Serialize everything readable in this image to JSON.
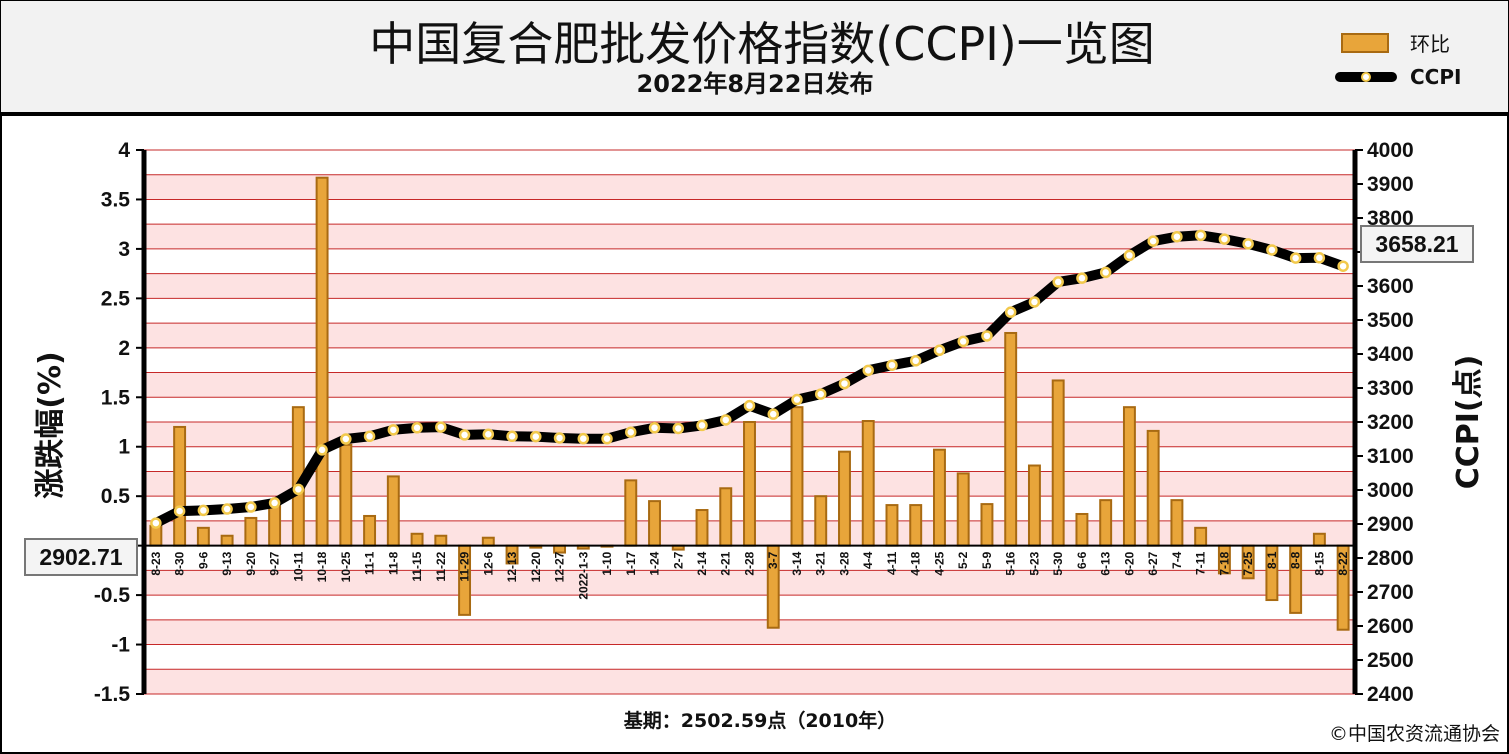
{
  "title": "中国复合肥批发价格指数(CCPI)一览图",
  "subtitle": "2022年8月22日发布",
  "legend": {
    "bar_label": "环比",
    "line_label": "CCPI"
  },
  "footer": {
    "base": "基期：2502.59点（2010年）",
    "copyright": "©中国农资流通协会"
  },
  "callouts": {
    "start": "2902.71",
    "end": "3658.21"
  },
  "colors": {
    "band": "#fde2e2",
    "gridline": "#c62828",
    "bar_fill": "#e8a53a",
    "bar_edge": "#a86a12",
    "line": "#000000",
    "marker": "#f2c94c"
  },
  "chart_data": {
    "type": "bar",
    "title": "中国复合肥批发价格指数(CCPI)一览图",
    "xlabel": "",
    "ylabel": "涨跌幅(%)",
    "y2label": "CCPI(点)",
    "ylim": [
      -1.5,
      4
    ],
    "y2lim": [
      2400,
      4000
    ],
    "yticks": [
      "4",
      "3.5",
      "3",
      "2.5",
      "2",
      "1.5",
      "1",
      "0.5",
      "",
      "-0.5",
      "-1",
      "-1.5"
    ],
    "y2ticks": [
      "4000",
      "3900",
      "3800",
      "3700",
      "3600",
      "3500",
      "3400",
      "3300",
      "3200",
      "3100",
      "3000",
      "2900",
      "2800",
      "2700",
      "2600",
      "2500",
      "2400"
    ],
    "grid": true,
    "legend_position": "top-right",
    "categories": [
      "8-23",
      "8-30",
      "9-6",
      "9-13",
      "9-20",
      "9-27",
      "10-11",
      "10-18",
      "10-25",
      "11-1",
      "11-8",
      "11-15",
      "11-22",
      "11-29",
      "12-6",
      "12-13",
      "12-20",
      "12-27",
      "2022-1-3",
      "1-10",
      "1-17",
      "1-24",
      "2-7",
      "2-14",
      "2-21",
      "2-28",
      "3-7",
      "3-14",
      "3-21",
      "3-28",
      "4-4",
      "4-11",
      "4-18",
      "4-25",
      "5-2",
      "5-9",
      "5-16",
      "5-23",
      "5-30",
      "6-6",
      "6-13",
      "6-20",
      "6-27",
      "7-4",
      "7-11",
      "7-18",
      "7-25",
      "8-1",
      "8-8",
      "8-15",
      "8-22"
    ],
    "series": [
      {
        "name": "环比",
        "type": "bar",
        "values": [
          0.2,
          1.2,
          0.18,
          0.1,
          0.28,
          0.4,
          1.4,
          3.72,
          1.02,
          0.3,
          0.7,
          0.12,
          0.1,
          -0.7,
          0.08,
          -0.18,
          -0.02,
          -0.07,
          -0.03,
          0.0,
          0.66,
          0.45,
          -0.04,
          0.36,
          0.58,
          1.25,
          -0.83,
          1.4,
          0.5,
          0.95,
          1.26,
          0.41,
          0.41,
          0.97,
          0.73,
          0.42,
          2.15,
          0.81,
          1.67,
          0.32,
          0.46,
          1.4,
          1.16,
          0.46,
          0.18,
          -0.28,
          -0.33,
          -0.55,
          -0.68,
          0.12,
          -0.85
        ]
      },
      {
        "name": "CCPI",
        "type": "line",
        "axis": "right",
        "values": [
          2902.71,
          2938,
          2940,
          2944,
          2950,
          2962,
          3002,
          3118,
          3150,
          3158,
          3177,
          3183,
          3185,
          3162,
          3164,
          3158,
          3157,
          3153,
          3151,
          3151,
          3170,
          3183,
          3181,
          3190,
          3206,
          3248,
          3223,
          3266,
          3282,
          3313,
          3352,
          3367,
          3380,
          3411,
          3437,
          3453,
          3523,
          3553,
          3612,
          3623,
          3640,
          3690,
          3732,
          3745,
          3749,
          3738,
          3724,
          3706,
          3682,
          3683,
          3658.21
        ]
      }
    ]
  }
}
